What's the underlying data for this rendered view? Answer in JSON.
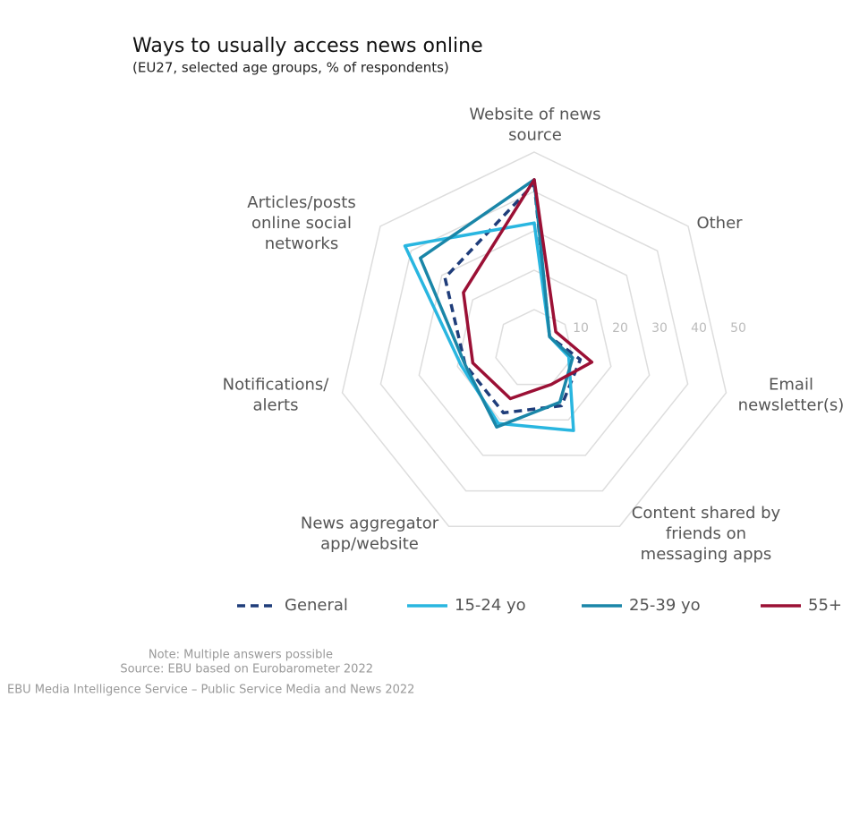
{
  "chart_data": {
    "type": "radar",
    "title": "Ways to usually access news online",
    "subtitle": "(EU27, selected age groups, % of respondents)",
    "categories": [
      [
        "Website of news",
        "source"
      ],
      [
        "Other"
      ],
      [
        "Email",
        "newsletter(s)"
      ],
      [
        "Content shared by",
        "friends on",
        "messaging apps"
      ],
      [
        "News aggregator",
        "app/website"
      ],
      [
        "Notifications/",
        "alerts"
      ],
      [
        "Articles/posts",
        "online social",
        "networks"
      ]
    ],
    "rlim": [
      0,
      50
    ],
    "rticks": [
      10,
      20,
      30,
      40,
      50
    ],
    "series": [
      {
        "name": "General",
        "color": "#1f3d7a",
        "dashed": true,
        "values": [
          42,
          5,
          12,
          16,
          18,
          18,
          29
        ]
      },
      {
        "name": "15-24 yo",
        "color": "#29b6e0",
        "values": [
          32,
          5,
          9,
          23,
          21,
          19,
          42
        ]
      },
      {
        "name": "25-39 yo",
        "color": "#1a86a8",
        "values": [
          43,
          5,
          10,
          15,
          22,
          18,
          37
        ]
      },
      {
        "name": "55+",
        "color": "#9b1035",
        "values": [
          43,
          7,
          15,
          10,
          14,
          16,
          23
        ]
      }
    ],
    "notes": [
      "Note: Multiple answers possible",
      "Source: EBU based on Eurobarometer 2022",
      "EBU Media Intelligence Service – Public Service Media and News 2022"
    ]
  }
}
